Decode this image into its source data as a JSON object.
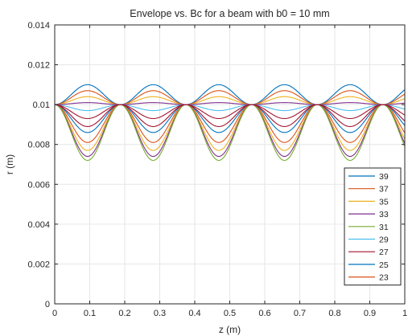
{
  "chart_data": {
    "type": "line",
    "title": "Envelope vs. Bc for a beam with b0 = 10 mm",
    "xlabel": "z (m)",
    "ylabel": "r (m)",
    "xlim": [
      0,
      1
    ],
    "ylim": [
      0,
      0.014
    ],
    "x_ticks": [
      0,
      0.1,
      0.2,
      0.3,
      0.4,
      0.5,
      0.6,
      0.7,
      0.8,
      0.9,
      1
    ],
    "x_tick_labels": [
      "0",
      "0.1",
      "0.2",
      "0.3",
      "0.4",
      "0.5",
      "0.6",
      "0.7",
      "0.8",
      "0.9",
      "1"
    ],
    "y_ticks": [
      0,
      0.002,
      0.004,
      0.006,
      0.008,
      0.01,
      0.012,
      0.014
    ],
    "y_tick_labels": [
      "0",
      "0.002",
      "0.004",
      "0.006",
      "0.008",
      "0.01",
      "0.012",
      "0.014"
    ],
    "grid": true,
    "legend_position": "bottom-right",
    "series": [
      {
        "name": "39",
        "color": "#0072BD",
        "r0": 0.01,
        "r_extreme": 0.0086,
        "period": 0.1875
      },
      {
        "name": "37",
        "color": "#D95319",
        "r0": 0.01,
        "r_extreme": 0.0081,
        "period": 0.1875
      },
      {
        "name": "35",
        "color": "#EDB120",
        "r0": 0.01,
        "r_extreme": 0.0077,
        "period": 0.1875
      },
      {
        "name": "33",
        "color": "#7E2F8E",
        "r0": 0.01,
        "r_extreme": 0.0074,
        "period": 0.1875
      },
      {
        "name": "31",
        "color": "#77AC30",
        "r0": 0.01,
        "r_extreme": 0.0072,
        "period": 0.1875
      },
      {
        "name": "29",
        "color": "#4DBEEE",
        "r0": 0.01,
        "r_extreme": 0.0097,
        "period": 0.1875
      },
      {
        "name": "27",
        "color": "#A2142F",
        "r0": 0.01,
        "r_extreme": 0.0093,
        "period": 0.1875
      },
      {
        "name": "25",
        "color": "#0072BD",
        "r0": 0.01,
        "r_extreme": 0.011,
        "period": 0.1875
      },
      {
        "name": "23",
        "color": "#D95319",
        "r0": 0.01,
        "r_extreme": 0.0107,
        "period": 0.1875
      },
      {
        "name": "",
        "color": "#EDB120",
        "r0": 0.01,
        "r_extreme": 0.0104,
        "period": 0.1875
      },
      {
        "name": "",
        "color": "#7E2F8E",
        "r0": 0.01,
        "r_extreme": 0.0101,
        "period": 0.1875
      },
      {
        "name": "",
        "color": "#A2142F",
        "r0": 0.01,
        "r_extreme": 0.0089,
        "period": 0.1875
      }
    ]
  }
}
